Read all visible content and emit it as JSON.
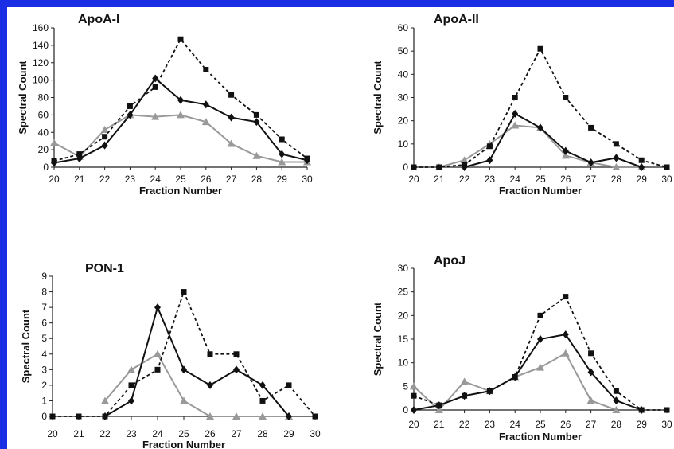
{
  "chart_data": [
    {
      "type": "line",
      "title": "ApoA-I",
      "xlabel": "Fraction Number",
      "ylabel": "Spectral Count",
      "x": [
        20,
        21,
        22,
        23,
        24,
        25,
        26,
        27,
        28,
        29,
        30
      ],
      "ylim": [
        0,
        160
      ],
      "yticks": [
        0,
        20,
        40,
        60,
        80,
        100,
        120,
        140,
        160
      ],
      "series": [
        {
          "marker": "square",
          "style": "dashed",
          "color": "#111111",
          "values": [
            7,
            15,
            35,
            70,
            92,
            147,
            112,
            83,
            60,
            32,
            10
          ]
        },
        {
          "marker": "diamond",
          "style": "solid",
          "color": "#111111",
          "values": [
            5,
            10,
            25,
            60,
            102,
            77,
            72,
            57,
            52,
            15,
            8
          ]
        },
        {
          "marker": "triangle",
          "style": "solid",
          "color": "#999999",
          "values": [
            28,
            12,
            43,
            60,
            58,
            60,
            52,
            27,
            13,
            6,
            6
          ]
        }
      ]
    },
    {
      "type": "line",
      "title": "ApoA-II",
      "xlabel": "Fraction Number",
      "ylabel": "Spectral Count",
      "x": [
        20,
        21,
        22,
        23,
        24,
        25,
        26,
        27,
        28,
        29,
        30
      ],
      "ylim": [
        0,
        60
      ],
      "yticks": [
        0,
        10,
        20,
        30,
        40,
        50,
        60
      ],
      "series": [
        {
          "marker": "square",
          "style": "dashed",
          "color": "#111111",
          "values": [
            0,
            0,
            1,
            9,
            30,
            51,
            30,
            17,
            10,
            3,
            0
          ]
        },
        {
          "marker": "diamond",
          "style": "solid",
          "color": "#111111",
          "values": [
            null,
            null,
            0,
            3,
            23,
            17,
            7,
            2,
            4,
            0,
            null
          ]
        },
        {
          "marker": "triangle",
          "style": "solid",
          "color": "#999999",
          "values": [
            null,
            0,
            3,
            10,
            18,
            17,
            5,
            2,
            0,
            0,
            null
          ]
        }
      ]
    },
    {
      "type": "line",
      "title": "PON-1",
      "xlabel": "Fraction Number",
      "ylabel": "Spectral Count",
      "x": [
        20,
        21,
        22,
        23,
        24,
        25,
        26,
        27,
        28,
        29,
        30
      ],
      "ylim": [
        0,
        9
      ],
      "yticks": [
        0,
        1,
        2,
        3,
        4,
        5,
        6,
        7,
        8,
        9
      ],
      "series": [
        {
          "marker": "square",
          "style": "dashed",
          "color": "#111111",
          "values": [
            0,
            0,
            0,
            2,
            3,
            8,
            4,
            4,
            1,
            2,
            0
          ]
        },
        {
          "marker": "diamond",
          "style": "solid",
          "color": "#111111",
          "values": [
            null,
            null,
            0,
            1,
            7,
            3,
            2,
            3,
            2,
            0,
            null
          ]
        },
        {
          "marker": "triangle",
          "style": "solid",
          "color": "#999999",
          "values": [
            null,
            null,
            1,
            3,
            4,
            1,
            0,
            0,
            0,
            0,
            null
          ]
        }
      ]
    },
    {
      "type": "line",
      "title": "ApoJ",
      "xlabel": "Fraction Number",
      "ylabel": "Spectral Count",
      "x": [
        20,
        21,
        22,
        23,
        24,
        25,
        26,
        27,
        28,
        29,
        30
      ],
      "ylim": [
        0,
        30
      ],
      "yticks": [
        0,
        5,
        10,
        15,
        20,
        25,
        30
      ],
      "series": [
        {
          "marker": "square",
          "style": "dashed",
          "color": "#111111",
          "values": [
            3,
            1,
            3,
            4,
            7,
            20,
            24,
            12,
            4,
            0,
            0
          ]
        },
        {
          "marker": "diamond",
          "style": "solid",
          "color": "#111111",
          "values": [
            0,
            1,
            3,
            4,
            7,
            15,
            16,
            8,
            2,
            0,
            null
          ]
        },
        {
          "marker": "triangle",
          "style": "solid",
          "color": "#999999",
          "values": [
            5,
            0,
            6,
            4,
            7,
            9,
            12,
            2,
            0,
            null,
            null
          ]
        }
      ]
    }
  ]
}
